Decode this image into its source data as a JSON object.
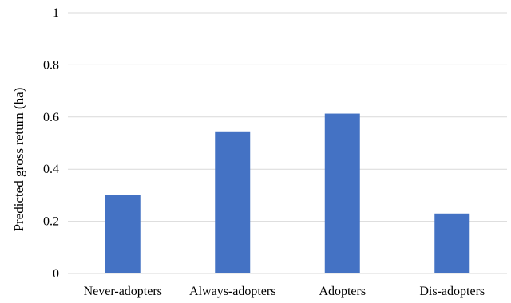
{
  "chart_data": {
    "type": "bar",
    "title": "",
    "xlabel": "",
    "ylabel": "Predicted gross return (ha)",
    "categories": [
      "Never-adopters",
      "Always-adopters",
      "Adopters",
      "Dis-adopters"
    ],
    "values": [
      0.3,
      0.545,
      0.613,
      0.23
    ],
    "ylim": [
      0,
      1
    ],
    "yticks": [
      0,
      0.2,
      0.4,
      0.6,
      0.8,
      1
    ],
    "ytick_labels": [
      "0",
      "0.2",
      "0.4",
      "0.6",
      "0.8",
      "1"
    ],
    "bar_color": "#4472c4",
    "grid": true,
    "legend": "none"
  }
}
